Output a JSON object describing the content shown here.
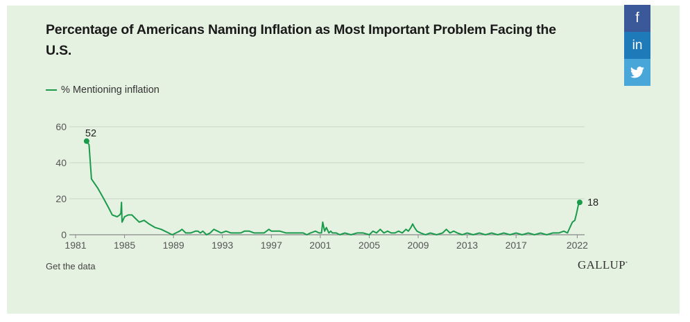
{
  "title": "Percentage of Americans Naming Inflation as Most Important Problem Facing the U.S.",
  "get_data_label": "Get the data",
  "brand": "GALLUP",
  "share": {
    "facebook": "f",
    "linkedin": "in",
    "twitter": "twitter-bird-icon"
  },
  "colors": {
    "line": "#1a9a4b",
    "background": "#e5f1e1",
    "grid": "#c9d8c5"
  },
  "chart_data": {
    "type": "line",
    "title": "Percentage of Americans Naming Inflation as Most Important Problem Facing the U.S.",
    "xlabel": "",
    "ylabel": "",
    "xlim": [
      1981,
      2022.6
    ],
    "ylim": [
      0,
      60
    ],
    "x_ticks": [
      1981,
      1985,
      1989,
      1993,
      1997,
      2001,
      2005,
      2009,
      2013,
      2017,
      2022
    ],
    "x_tick_labels": [
      "1981",
      "1985",
      "1989",
      "1993",
      "1997",
      "2001",
      "2005",
      "2009",
      "2013",
      "2017",
      "2022"
    ],
    "y_ticks": [
      0,
      20,
      40,
      60
    ],
    "y_tick_labels": [
      "0",
      "20",
      "40",
      "60"
    ],
    "grid": true,
    "legend": "top-left",
    "series": [
      {
        "name": "% Mentioning inflation",
        "x": [
          1981.9,
          1982.1,
          1982.3,
          1982.8,
          1983.3,
          1983.7,
          1984.0,
          1984.4,
          1984.6,
          1984.7,
          1984.75,
          1984.8,
          1985.0,
          1985.3,
          1985.6,
          1985.9,
          1986.2,
          1986.6,
          1987.0,
          1987.5,
          1988.0,
          1988.3,
          1988.6,
          1988.9,
          1989.2,
          1989.5,
          1989.7,
          1990.0,
          1990.4,
          1990.8,
          1991.0,
          1991.2,
          1991.4,
          1991.7,
          1992.0,
          1992.3,
          1992.6,
          1992.9,
          1993.3,
          1993.7,
          1994.0,
          1994.5,
          1994.8,
          1995.2,
          1995.6,
          1996.0,
          1996.4,
          1996.8,
          1997.0,
          1997.3,
          1997.7,
          1998.2,
          1998.7,
          1999.2,
          1999.6,
          1999.9,
          2000.2,
          2000.6,
          2000.9,
          2001.1,
          2001.2,
          2001.35,
          2001.5,
          2001.7,
          2001.85,
          2002.0,
          2002.3,
          2002.6,
          2003.0,
          2003.5,
          2004.0,
          2004.5,
          2005.0,
          2005.3,
          2005.6,
          2005.9,
          2006.2,
          2006.5,
          2006.8,
          2007.1,
          2007.4,
          2007.7,
          2008.0,
          2008.2,
          2008.4,
          2008.55,
          2008.7,
          2008.9,
          2009.2,
          2009.6,
          2010.0,
          2010.5,
          2011.0,
          2011.3,
          2011.6,
          2011.9,
          2012.2,
          2012.6,
          2013.0,
          2013.5,
          2014.0,
          2014.5,
          2015.0,
          2015.5,
          2016.0,
          2016.5,
          2017.0,
          2017.5,
          2018.0,
          2018.5,
          2019.0,
          2019.5,
          2020.0,
          2020.5,
          2020.9,
          2021.2,
          2021.4,
          2021.6,
          2021.8,
          2021.95,
          2022.1,
          2022.2
        ],
        "y": [
          52,
          50,
          31,
          26,
          20,
          15,
          11,
          10,
          11,
          12,
          18,
          7,
          10,
          11,
          11,
          9,
          7,
          8,
          6,
          4,
          3,
          2,
          1,
          0,
          1,
          2,
          3,
          1,
          1,
          2,
          2,
          1,
          2,
          0,
          1,
          3,
          2,
          1,
          2,
          1,
          1,
          1,
          2,
          2,
          1,
          1,
          1,
          3,
          2,
          2,
          2,
          1,
          1,
          1,
          1,
          0,
          1,
          2,
          1,
          1,
          7,
          2,
          4,
          1,
          2,
          1,
          1,
          0,
          1,
          0,
          1,
          1,
          0,
          2,
          1,
          3,
          1,
          2,
          1,
          1,
          2,
          1,
          3,
          2,
          4,
          6,
          4,
          2,
          1,
          0,
          1,
          0,
          1,
          3,
          1,
          2,
          1,
          0,
          1,
          0,
          1,
          0,
          1,
          0,
          1,
          0,
          1,
          0,
          1,
          0,
          1,
          0,
          1,
          1,
          2,
          1,
          4,
          7,
          8,
          12,
          17,
          18
        ]
      }
    ],
    "annotations": [
      {
        "x": 1981.9,
        "y": 52,
        "label": "52"
      },
      {
        "x": 2022.2,
        "y": 18,
        "label": "18"
      }
    ]
  }
}
